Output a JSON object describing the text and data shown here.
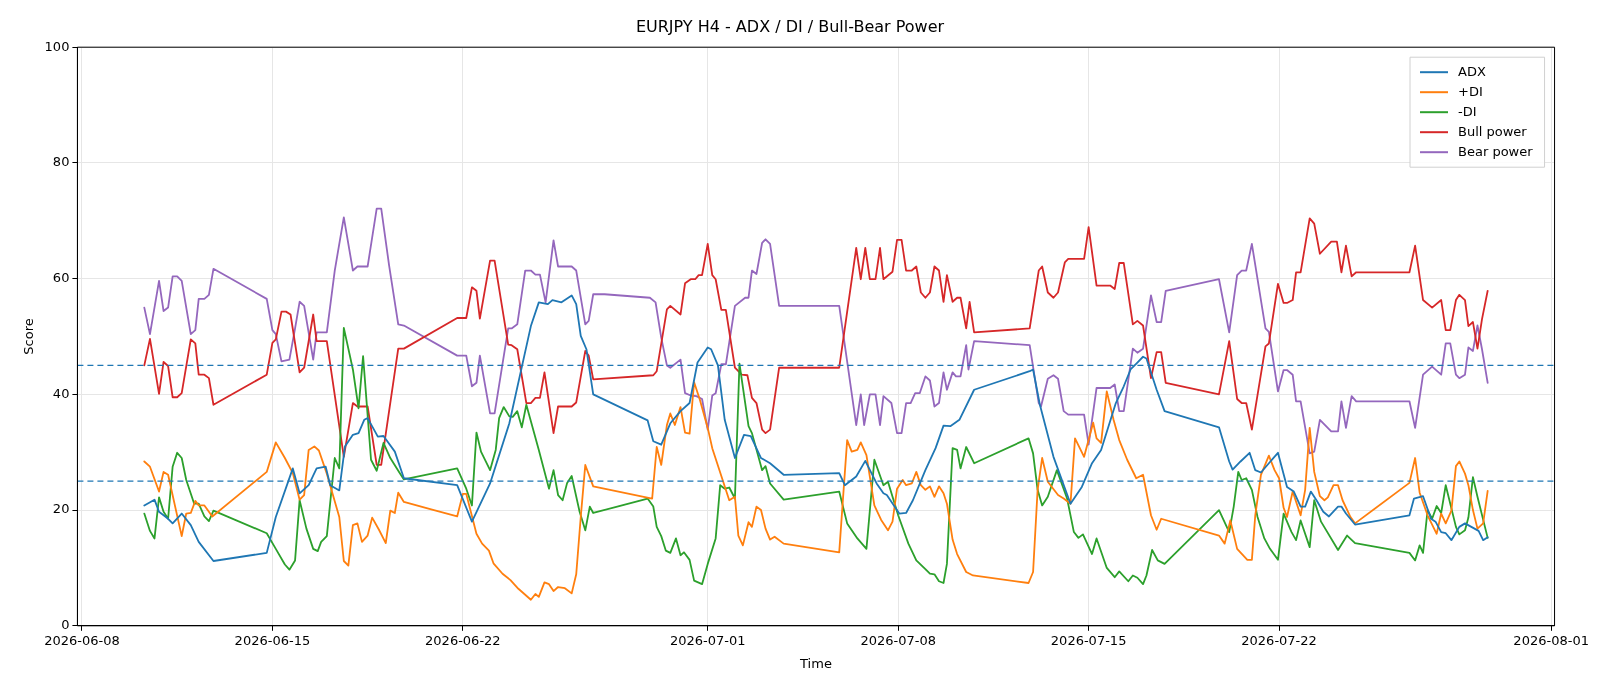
{
  "chart_data": {
    "type": "line",
    "title": "EURJPY H4 - ADX / DI / Bull-Bear Power",
    "xlabel": "Time",
    "ylabel": "Score",
    "xlim": [
      "2026-06-07T20:00",
      "2026-08-01T03:00"
    ],
    "xticks": [
      "2026-06-08",
      "2026-06-15",
      "2026-06-22",
      "2026-07-01",
      "2026-07-08",
      "2026-07-15",
      "2026-07-22",
      "2026-08-01"
    ],
    "ylim": [
      0,
      100
    ],
    "yticks": [
      0,
      20,
      40,
      60,
      80,
      100
    ],
    "grid": true,
    "legend": "top right",
    "marker": "none",
    "line_style": "solid",
    "ref_lines": [
      {
        "axis": "y",
        "value": 45,
        "color": "#1f77b4",
        "line_style": "dashed"
      },
      {
        "axis": "y",
        "value": 25,
        "color": "#1f77b4",
        "line_style": "dashed"
      }
    ],
    "series": [
      {
        "name": "ADX",
        "color": "#1f77b4",
        "x": [
          "2026-06-10T07:00",
          "2026-06-10T16:00",
          "2026-06-10T20:00",
          "2026-06-11T04:00",
          "2026-06-11T08:00",
          "2026-06-11T16:00",
          "2026-06-12T00:00",
          "2026-06-12T07:00",
          "2026-06-12T20:00",
          "2026-06-14T19:00",
          "2026-06-15T03:00",
          "2026-06-15T18:00",
          "2026-06-16T00:00",
          "2026-06-16T08:00",
          "2026-06-16T15:00",
          "2026-06-16T23:00",
          "2026-06-17T03:00",
          "2026-06-17T11:00",
          "2026-06-17T16:00",
          "2026-06-17T23:00",
          "2026-06-18T04:00",
          "2026-06-18T09:00",
          "2026-06-18T12:00",
          "2026-06-18T21:00",
          "2026-06-19T02:00",
          "2026-06-19T12:00",
          "2026-06-19T20:00",
          "2026-06-21T19:00",
          "2026-06-22T08:00",
          "2026-06-23T00:00",
          "2026-06-23T17:00",
          "2026-06-24T12:00",
          "2026-06-24T19:00",
          "2026-06-25T03:00",
          "2026-06-25T07:00",
          "2026-06-25T15:00",
          "2026-06-26T00:00",
          "2026-06-26T04:00",
          "2026-06-26T08:00",
          "2026-06-26T13:00",
          "2026-06-26T19:00",
          "2026-06-28T19:00",
          "2026-06-29T00:00",
          "2026-06-29T07:00",
          "2026-06-29T15:00",
          "2026-06-30T00:00",
          "2026-06-30T08:00",
          "2026-06-30T15:00",
          "2026-07-01T00:00",
          "2026-07-01T03:00",
          "2026-07-01T09:00",
          "2026-07-01T15:00",
          "2026-07-02T00:00",
          "2026-07-02T08:00",
          "2026-07-02T14:00",
          "2026-07-02T23:00",
          "2026-07-03T07:00",
          "2026-07-03T19:00",
          "2026-07-05T20:00",
          "2026-07-06T01:00",
          "2026-07-06T11:00",
          "2026-07-06T19:00",
          "2026-07-07T05:00",
          "2026-07-07T11:00",
          "2026-07-07T14:00",
          "2026-07-08T01:00",
          "2026-07-08T07:00",
          "2026-07-08T13:00",
          "2026-07-09T00:00",
          "2026-07-09T09:00",
          "2026-07-09T16:00",
          "2026-07-09T22:00",
          "2026-07-10T06:00",
          "2026-07-10T19:00",
          "2026-07-12T20:00",
          "2026-07-12T23:00",
          "2026-07-13T05:00",
          "2026-07-13T17:00",
          "2026-07-14T08:00",
          "2026-07-14T18:00",
          "2026-07-15T03:00",
          "2026-07-15T11:00",
          "2026-07-16T00:00",
          "2026-07-16T07:00",
          "2026-07-16T13:00",
          "2026-07-16T19:00",
          "2026-07-17T00:00",
          "2026-07-17T03:00",
          "2026-07-17T12:00",
          "2026-07-17T19:00",
          "2026-07-19T19:00",
          "2026-07-20T04:00",
          "2026-07-20T07:00",
          "2026-07-20T14:00",
          "2026-07-20T22:00",
          "2026-07-21T03:00",
          "2026-07-21T08:00",
          "2026-07-21T15:00",
          "2026-07-21T23:00",
          "2026-07-22T07:00",
          "2026-07-22T13:00",
          "2026-07-22T19:00",
          "2026-07-22T23:00",
          "2026-07-23T04:00",
          "2026-07-23T09:00",
          "2026-07-23T15:00",
          "2026-07-23T20:00",
          "2026-07-24T04:00",
          "2026-07-24T07:00",
          "2026-07-24T11:00",
          "2026-07-24T19:00",
          "2026-07-26T19:00",
          "2026-07-26T23:00",
          "2026-07-27T07:00",
          "2026-07-27T14:00",
          "2026-07-27T18:00",
          "2026-07-27T23:00",
          "2026-07-28T03:00",
          "2026-07-28T08:00",
          "2026-07-28T15:00",
          "2026-07-28T20:00",
          "2026-07-29T08:00",
          "2026-07-29T12:00",
          "2026-07-29T16:00"
        ],
        "values": [
          20.8,
          21.8,
          19.7,
          18.5,
          17.7,
          19.4,
          17.4,
          14.5,
          11.2,
          12.6,
          18.8,
          27.2,
          22.9,
          24.3,
          27.2,
          27.5,
          24.3,
          23.4,
          31.0,
          33.0,
          33.3,
          35.6,
          35.9,
          32.7,
          32.8,
          30.1,
          25.5,
          24.3,
          18.0,
          24.6,
          35.0,
          51.8,
          55.9,
          55.6,
          56.3,
          55.9,
          57.1,
          55.6,
          50.1,
          47.8,
          40.0,
          35.5,
          31.9,
          31.3,
          35.0,
          37.1,
          38.5,
          45.5,
          48.1,
          47.8,
          45.0,
          35.6,
          29.0,
          33.0,
          32.8,
          29.0,
          28.1,
          26.1,
          26.4,
          24.3,
          25.8,
          28.5,
          24.6,
          22.9,
          22.6,
          19.4,
          19.5,
          21.7,
          26.9,
          30.7,
          34.6,
          34.5,
          35.6,
          40.8,
          44.0,
          44.3,
          38.2,
          29.2,
          21.1,
          24.0,
          28.1,
          30.4,
          38.5,
          41.4,
          44.3,
          45.5,
          46.5,
          46.2,
          40.8,
          37.1,
          34.3,
          28.4,
          27.0,
          28.4,
          29.9,
          26.9,
          26.5,
          28.1,
          29.9,
          24.0,
          23.2,
          20.6,
          20.6,
          23.2,
          21.7,
          19.7,
          18.9,
          20.6,
          20.6,
          19.4,
          17.5,
          19.1,
          22.0,
          22.4,
          18.5,
          18.0,
          16.2,
          16.0,
          14.8,
          17.1,
          17.7,
          16.4,
          14.8,
          15.3
        ]
      },
      {
        "name": "+DI",
        "color": "#ff7f0e",
        "x": [
          "2026-06-10T07:00",
          "2026-06-10T12:00",
          "2026-06-10T20:00",
          "2026-06-11T00:00",
          "2026-06-11T04:00",
          "2026-06-11T16:00",
          "2026-06-11T20:00",
          "2026-06-12T00:00",
          "2026-06-12T04:00",
          "2026-06-12T07:00",
          "2026-06-12T12:00",
          "2026-06-12T19:00",
          "2026-06-14T19:00",
          "2026-06-15T03:00",
          "2026-06-15T11:00",
          "2026-06-15T18:00",
          "2026-06-16T00:00",
          "2026-06-16T04:00",
          "2026-06-16T08:00",
          "2026-06-16T13:00",
          "2026-06-16T17:00",
          "2026-06-17T00:00",
          "2026-06-17T11:00",
          "2026-06-17T15:00",
          "2026-06-17T19:00",
          "2026-06-17T23:00",
          "2026-06-18T03:00",
          "2026-06-18T07:00",
          "2026-06-18T12:00",
          "2026-06-18T16:00",
          "2026-06-18T22:00",
          "2026-06-19T04:00",
          "2026-06-19T08:00",
          "2026-06-19T12:00",
          "2026-06-19T15:00",
          "2026-06-19T20:00",
          "2026-06-21T19:00",
          "2026-06-22T00:00",
          "2026-06-22T03:00",
          "2026-06-22T12:00",
          "2026-06-22T17:00",
          "2026-06-22T23:00",
          "2026-06-23T03:00",
          "2026-06-23T11:00",
          "2026-06-23T18:00",
          "2026-06-24T01:00",
          "2026-06-24T12:00",
          "2026-06-24T16:00",
          "2026-06-24T19:00",
          "2026-06-25T00:00",
          "2026-06-25T04:00",
          "2026-06-25T08:00",
          "2026-06-25T12:00",
          "2026-06-25T18:00",
          "2026-06-26T00:00",
          "2026-06-26T04:00",
          "2026-06-26T08:00",
          "2026-06-26T12:00",
          "2026-06-26T19:00",
          "2026-06-28T23:00",
          "2026-06-29T03:00",
          "2026-06-29T07:00",
          "2026-06-29T12:00",
          "2026-06-29T15:00",
          "2026-06-29T19:00",
          "2026-06-30T00:00",
          "2026-06-30T04:00",
          "2026-06-30T08:00",
          "2026-06-30T12:00",
          "2026-06-30T17:00",
          "2026-07-01T00:00",
          "2026-07-01T04:00",
          "2026-07-01T19:00",
          "2026-07-02T00:00",
          "2026-07-02T03:00",
          "2026-07-02T07:00",
          "2026-07-02T12:00",
          "2026-07-02T15:00",
          "2026-07-02T19:00",
          "2026-07-02T23:00",
          "2026-07-03T03:00",
          "2026-07-03T07:00",
          "2026-07-03T11:00",
          "2026-07-03T19:00",
          "2026-07-05T20:00",
          "2026-07-05T23:00",
          "2026-07-06T03:00",
          "2026-07-06T07:00",
          "2026-07-06T12:00",
          "2026-07-06T15:00",
          "2026-07-06T20:00",
          "2026-07-07T03:00",
          "2026-07-07T09:00",
          "2026-07-07T15:00",
          "2026-07-07T19:00",
          "2026-07-07T23:00",
          "2026-07-08T04:00",
          "2026-07-08T07:00",
          "2026-07-08T12:00",
          "2026-07-08T16:00",
          "2026-07-08T20:00",
          "2026-07-09T00:00",
          "2026-07-09T04:00",
          "2026-07-09T08:00",
          "2026-07-09T12:00",
          "2026-07-09T16:00",
          "2026-07-09T19:00",
          "2026-07-10T00:00",
          "2026-07-10T04:00",
          "2026-07-10T12:00",
          "2026-07-10T18:00",
          "2026-07-12T19:00",
          "2026-07-12T23:00",
          "2026-07-13T03:00",
          "2026-07-13T07:00",
          "2026-07-13T12:00",
          "2026-07-13T21:00",
          "2026-07-14T02:00",
          "2026-07-14T08:00",
          "2026-07-14T12:00",
          "2026-07-14T20:00",
          "2026-07-15T04:00",
          "2026-07-15T07:00",
          "2026-07-15T11:00",
          "2026-07-15T16:00",
          "2026-07-15T22:00",
          "2026-07-16T03:00",
          "2026-07-16T10:00",
          "2026-07-16T18:00",
          "2026-07-17T00:00",
          "2026-07-17T07:00",
          "2026-07-17T12:00",
          "2026-07-17T16:00",
          "2026-07-19T19:00",
          "2026-07-20T00:00",
          "2026-07-20T05:00",
          "2026-07-20T11:00",
          "2026-07-20T20:00",
          "2026-07-21T00:00",
          "2026-07-21T03:00",
          "2026-07-21T08:00",
          "2026-07-21T15:00",
          "2026-07-21T20:00",
          "2026-07-22T00:00",
          "2026-07-22T04:00",
          "2026-07-22T07:00",
          "2026-07-22T12:00",
          "2026-07-22T19:00",
          "2026-07-22T23:00",
          "2026-07-23T03:00",
          "2026-07-23T07:00",
          "2026-07-23T12:00",
          "2026-07-23T16:00",
          "2026-07-23T19:00",
          "2026-07-24T00:00",
          "2026-07-24T04:00",
          "2026-07-24T08:00",
          "2026-07-24T15:00",
          "2026-07-24T19:00",
          "2026-07-26T19:00",
          "2026-07-27T00:00",
          "2026-07-27T04:00",
          "2026-07-27T11:00",
          "2026-07-27T19:00",
          "2026-07-27T23:00",
          "2026-07-28T03:00",
          "2026-07-28T08:00",
          "2026-07-28T12:00",
          "2026-07-28T15:00",
          "2026-07-28T20:00",
          "2026-07-28T23:00",
          "2026-07-29T03:00",
          "2026-07-29T07:00",
          "2026-07-29T12:00",
          "2026-07-29T16:00"
        ],
        "values": [
          28.4,
          27.5,
          23.2,
          26.6,
          26.1,
          15.5,
          19.4,
          19.5,
          21.6,
          20.8,
          20.8,
          18.9,
          26.6,
          31.7,
          29.0,
          26.4,
          21.8,
          22.6,
          30.4,
          31.0,
          30.3,
          26.3,
          18.8,
          11.2,
          10.4,
          17.4,
          17.7,
          14.5,
          15.6,
          18.7,
          16.6,
          14.3,
          19.9,
          19.5,
          23.0,
          21.4,
          18.9,
          22.8,
          22.8,
          15.9,
          14.2,
          13.0,
          10.8,
          9.0,
          7.9,
          6.4,
          4.5,
          5.5,
          5.0,
          7.5,
          7.2,
          6.0,
          6.7,
          6.5,
          5.6,
          8.9,
          18.8,
          27.8,
          24.1,
          22.0,
          30.9,
          27.8,
          34.7,
          36.7,
          34.7,
          37.8,
          33.4,
          33.2,
          42.1,
          39.1,
          34.2,
          30.7,
          21.7,
          22.3,
          15.6,
          13.9,
          17.9,
          17.1,
          20.6,
          20.0,
          16.8,
          14.9,
          15.4,
          14.2,
          12.7,
          21.1,
          32.1,
          30.1,
          30.4,
          31.7,
          29.5,
          20.8,
          18.3,
          16.5,
          18.0,
          23.7,
          25.2,
          24.3,
          24.6,
          26.6,
          24.3,
          23.5,
          24.1,
          22.3,
          24.1,
          22.9,
          21.1,
          14.9,
          12.4,
          9.3,
          8.7,
          7.4,
          9.3,
          23.5,
          29.0,
          24.9,
          22.6,
          22.0,
          21.1,
          32.4,
          29.2,
          35.1,
          32.4,
          31.6,
          40.5,
          35.6,
          32.1,
          28.7,
          25.5,
          26.1,
          19.1,
          16.6,
          18.5,
          15.6,
          14.2,
          18.2,
          13.3,
          11.4,
          11.4,
          19.1,
          26.1,
          29.4,
          26.9,
          25.5,
          20.4,
          18.8,
          23.2,
          19.1,
          23.5,
          34.2,
          26.6,
          22.4,
          21.7,
          22.2,
          24.3,
          24.3,
          21.7,
          18.8,
          17.7,
          24.7,
          29.0,
          23.0,
          19.1,
          15.9,
          19.4,
          17.7,
          19.9,
          27.6,
          28.4,
          26.3,
          24.3,
          20.0,
          16.8,
          17.7,
          23.3
        ]
      },
      {
        "name": "-DI",
        "color": "#2ca02c",
        "x": [
          "2026-06-10T07:00",
          "2026-06-10T12:00",
          "2026-06-10T16:00",
          "2026-06-10T20:00",
          "2026-06-11T00:00",
          "2026-06-11T04:00",
          "2026-06-11T08:00",
          "2026-06-11T12:00",
          "2026-06-11T16:00",
          "2026-06-11T20:00",
          "2026-06-12T03:00",
          "2026-06-12T07:00",
          "2026-06-12T12:00",
          "2026-06-12T16:00",
          "2026-06-12T20:00",
          "2026-06-14T19:00",
          "2026-06-15T03:00",
          "2026-06-15T11:00",
          "2026-06-15T15:00",
          "2026-06-15T20:00",
          "2026-06-16T00:00",
          "2026-06-16T06:00",
          "2026-06-16T12:00",
          "2026-06-16T16:00",
          "2026-06-16T19:00",
          "2026-06-17T00:00",
          "2026-06-17T07:00",
          "2026-06-17T11:00",
          "2026-06-17T15:00",
          "2026-06-17T23:00",
          "2026-06-18T04:00",
          "2026-06-18T08:00",
          "2026-06-18T15:00",
          "2026-06-18T20:00",
          "2026-06-19T02:00",
          "2026-06-19T08:00",
          "2026-06-19T16:00",
          "2026-06-19T20:00",
          "2026-06-21T19:00",
          "2026-06-22T03:00",
          "2026-06-22T08:00",
          "2026-06-22T12:00",
          "2026-06-22T16:00",
          "2026-06-23T00:00",
          "2026-06-23T05:00",
          "2026-06-23T08:00",
          "2026-06-23T12:00",
          "2026-06-23T17:00",
          "2026-06-23T20:00",
          "2026-06-24T00:00",
          "2026-06-24T04:00",
          "2026-06-24T08:00",
          "2026-06-24T19:00",
          "2026-06-25T04:00",
          "2026-06-25T08:00",
          "2026-06-25T12:00",
          "2026-06-25T16:00",
          "2026-06-25T20:00",
          "2026-06-26T00:00",
          "2026-06-26T07:00",
          "2026-06-26T12:00",
          "2026-06-26T16:00",
          "2026-06-26T19:00",
          "2026-06-28T19:00",
          "2026-06-29T00:00",
          "2026-06-29T03:00",
          "2026-06-29T07:00",
          "2026-06-29T11:00",
          "2026-06-29T15:00",
          "2026-06-29T20:00",
          "2026-06-30T00:00",
          "2026-06-30T03:00",
          "2026-06-30T08:00",
          "2026-06-30T12:00",
          "2026-06-30T19:00",
          "2026-07-01T00:00",
          "2026-07-01T07:00",
          "2026-07-01T11:00",
          "2026-07-01T15:00",
          "2026-07-01T19:00",
          "2026-07-02T00:00",
          "2026-07-02T04:00",
          "2026-07-02T12:00",
          "2026-07-02T15:00",
          "2026-07-03T00:00",
          "2026-07-03T03:00",
          "2026-07-03T07:00",
          "2026-07-03T19:00",
          "2026-07-05T20:00",
          "2026-07-06T03:00",
          "2026-07-06T12:00",
          "2026-07-06T20:00",
          "2026-07-07T03:00",
          "2026-07-07T11:00",
          "2026-07-07T15:00",
          "2026-07-08T00:00",
          "2026-07-08T09:00",
          "2026-07-08T16:00",
          "2026-07-09T00:00",
          "2026-07-09T04:00",
          "2026-07-09T08:00",
          "2026-07-09T12:00",
          "2026-07-09T16:00",
          "2026-07-09T19:00",
          "2026-07-10T00:00",
          "2026-07-10T04:00",
          "2026-07-10T07:00",
          "2026-07-10T12:00",
          "2026-07-10T19:00",
          "2026-07-12T19:00",
          "2026-07-12T23:00",
          "2026-07-13T03:00",
          "2026-07-13T07:00",
          "2026-07-13T12:00",
          "2026-07-13T20:00",
          "2026-07-14T05:00",
          "2026-07-14T11:00",
          "2026-07-14T15:00",
          "2026-07-14T19:00",
          "2026-07-15T03:00",
          "2026-07-15T07:00",
          "2026-07-15T16:00",
          "2026-07-15T23:00",
          "2026-07-16T03:00",
          "2026-07-16T11:00",
          "2026-07-16T15:00",
          "2026-07-16T19:00",
          "2026-07-17T00:00",
          "2026-07-17T03:00",
          "2026-07-17T08:00",
          "2026-07-17T13:00",
          "2026-07-17T19:00",
          "2026-07-19T19:00",
          "2026-07-20T04:00",
          "2026-07-20T08:00",
          "2026-07-20T12:00",
          "2026-07-20T15:00",
          "2026-07-20T19:00",
          "2026-07-21T00:00",
          "2026-07-21T05:00",
          "2026-07-21T11:00",
          "2026-07-21T16:00",
          "2026-07-21T23:00",
          "2026-07-22T04:00",
          "2026-07-22T11:00",
          "2026-07-22T15:00",
          "2026-07-22T19:00",
          "2026-07-23T03:00",
          "2026-07-23T07:00",
          "2026-07-23T13:00",
          "2026-07-24T04:00",
          "2026-07-24T12:00",
          "2026-07-24T19:00",
          "2026-07-26T19:00",
          "2026-07-27T00:00",
          "2026-07-27T04:00",
          "2026-07-27T07:00",
          "2026-07-27T11:00",
          "2026-07-27T15:00",
          "2026-07-27T19:00",
          "2026-07-27T23:00",
          "2026-07-28T03:00",
          "2026-07-28T12:00",
          "2026-07-28T15:00",
          "2026-07-28T20:00",
          "2026-07-28T23:00",
          "2026-07-29T03:00",
          "2026-07-29T07:00",
          "2026-07-29T16:00"
        ],
        "values": [
          19.4,
          16.4,
          15.1,
          22.2,
          19.7,
          18.5,
          27.5,
          29.9,
          29.0,
          25.2,
          21.1,
          21.1,
          18.9,
          18.1,
          19.9,
          16.0,
          13.3,
          10.6,
          9.7,
          11.3,
          21.7,
          16.8,
          13.3,
          12.9,
          14.5,
          15.5,
          29.0,
          27.2,
          51.5,
          44.3,
          37.6,
          46.6,
          28.7,
          26.8,
          31.6,
          29.0,
          26.5,
          25.3,
          27.2,
          23.7,
          20.8,
          33.4,
          30.1,
          26.9,
          30.4,
          35.9,
          37.8,
          36.2,
          36.1,
          37.1,
          34.3,
          38.2,
          30.4,
          23.7,
          26.9,
          22.6,
          21.7,
          24.7,
          25.9,
          19.7,
          16.5,
          20.6,
          19.5,
          22.0,
          20.6,
          17.1,
          15.5,
          13.0,
          12.6,
          15.1,
          12.2,
          12.7,
          11.4,
          7.8,
          7.2,
          10.7,
          15.1,
          24.3,
          23.7,
          23.9,
          22.0,
          45.3,
          34.5,
          33.3,
          26.9,
          27.6,
          24.6,
          21.8,
          23.2,
          17.7,
          15.1,
          13.3,
          28.7,
          24.3,
          24.9,
          19.1,
          14.2,
          11.3,
          9.8,
          9.0,
          8.9,
          7.7,
          7.4,
          10.7,
          30.7,
          30.4,
          27.2,
          30.9,
          28.1,
          32.4,
          29.8,
          23.5,
          20.8,
          22.3,
          26.9,
          22.0,
          16.2,
          15.2,
          15.8,
          12.4,
          15.1,
          10.0,
          8.4,
          9.4,
          7.7,
          8.7,
          8.3,
          7.2,
          8.7,
          13.1,
          11.3,
          10.7,
          20.0,
          16.2,
          20.6,
          26.6,
          25.2,
          25.5,
          23.5,
          18.8,
          15.1,
          13.3,
          11.4,
          19.4,
          16.2,
          14.8,
          18.2,
          13.6,
          21.7,
          18.0,
          13.1,
          15.6,
          14.3,
          12.6,
          11.3,
          13.9,
          12.6,
          20.0,
          18.5,
          20.7,
          19.5,
          24.3,
          17.1,
          15.8,
          16.5,
          18.7,
          25.7,
          22.3,
          15.2
        ]
      },
      {
        "name": "Bull power",
        "color": "#d62728",
        "x": [
          "2026-06-10T07:00",
          "2026-06-10T12:00",
          "2026-06-10T20:00",
          "2026-06-11T00:00",
          "2026-06-11T04:00",
          "2026-06-11T08:00",
          "2026-06-11T12:00",
          "2026-06-11T16:00",
          "2026-06-12T00:00",
          "2026-06-12T04:00",
          "2026-06-12T07:00",
          "2026-06-12T12:00",
          "2026-06-12T16:00",
          "2026-06-12T20:00",
          "2026-06-14T19:00",
          "2026-06-15T00:00",
          "2026-06-15T03:00",
          "2026-06-15T08:00",
          "2026-06-15T12:00",
          "2026-06-15T16:00",
          "2026-06-16T00:00",
          "2026-06-16T04:00",
          "2026-06-16T12:00",
          "2026-06-16T15:00",
          "2026-06-17T00:00",
          "2026-06-17T15:00",
          "2026-06-17T23:00",
          "2026-06-18T03:00",
          "2026-06-18T12:00",
          "2026-06-18T20:00",
          "2026-06-19T00:00",
          "2026-06-19T15:00",
          "2026-06-19T20:00",
          "2026-06-21T19:00",
          "2026-06-22T03:00",
          "2026-06-22T08:00",
          "2026-06-22T12:00",
          "2026-06-22T15:00",
          "2026-06-23T00:00",
          "2026-06-23T04:00",
          "2026-06-23T16:00",
          "2026-06-23T19:00",
          "2026-06-24T00:00",
          "2026-06-24T08:00",
          "2026-06-24T12:00",
          "2026-06-24T16:00",
          "2026-06-24T20:00",
          "2026-06-25T00:00",
          "2026-06-25T08:00",
          "2026-06-25T12:00",
          "2026-06-26T00:00",
          "2026-06-26T04:00",
          "2026-06-26T12:00",
          "2026-06-26T15:00",
          "2026-06-26T19:00",
          "2026-06-29T00:00",
          "2026-06-29T03:00",
          "2026-06-29T12:00",
          "2026-06-29T15:00",
          "2026-06-30T00:00",
          "2026-06-30T04:00",
          "2026-06-30T09:00",
          "2026-06-30T13:00",
          "2026-06-30T16:00",
          "2026-06-30T19:00",
          "2026-07-01T00:00",
          "2026-07-01T04:00",
          "2026-07-01T07:00",
          "2026-07-01T12:00",
          "2026-07-01T16:00",
          "2026-07-02T00:00",
          "2026-07-02T06:00",
          "2026-07-02T11:00",
          "2026-07-02T15:00",
          "2026-07-02T19:00",
          "2026-07-03T00:00",
          "2026-07-03T03:00",
          "2026-07-03T07:00",
          "2026-07-03T15:00",
          "2026-07-05T20:00",
          "2026-07-06T11:00",
          "2026-07-06T15:00",
          "2026-07-06T19:00",
          "2026-07-06T23:00",
          "2026-07-07T04:00",
          "2026-07-07T08:00",
          "2026-07-07T11:00",
          "2026-07-07T19:00",
          "2026-07-07T23:00",
          "2026-07-08T03:00",
          "2026-07-08T07:00",
          "2026-07-08T12:00",
          "2026-07-08T16:00",
          "2026-07-08T20:00",
          "2026-07-09T00:00",
          "2026-07-09T04:00",
          "2026-07-09T08:00",
          "2026-07-09T12:00",
          "2026-07-09T16:00",
          "2026-07-09T19:00",
          "2026-07-10T00:00",
          "2026-07-10T04:00",
          "2026-07-10T07:00",
          "2026-07-10T12:00",
          "2026-07-10T15:00",
          "2026-07-10T19:00",
          "2026-07-12T20:00",
          "2026-07-13T04:00",
          "2026-07-13T07:00",
          "2026-07-13T12:00",
          "2026-07-13T17:00",
          "2026-07-13T21:00",
          "2026-07-14T03:00",
          "2026-07-14T06:00",
          "2026-07-14T20:00",
          "2026-07-15T00:00",
          "2026-07-15T07:00",
          "2026-07-15T19:00",
          "2026-07-15T23:00",
          "2026-07-16T03:00",
          "2026-07-16T07:00",
          "2026-07-16T15:00",
          "2026-07-16T19:00",
          "2026-07-17T00:00",
          "2026-07-17T07:00",
          "2026-07-17T12:00",
          "2026-07-17T16:00",
          "2026-07-17T20:00",
          "2026-07-19T19:00",
          "2026-07-20T04:00",
          "2026-07-20T11:00",
          "2026-07-20T15:00",
          "2026-07-20T19:00",
          "2026-07-21T00:00",
          "2026-07-21T12:00",
          "2026-07-21T15:00",
          "2026-07-21T23:00",
          "2026-07-22T04:00",
          "2026-07-22T07:00",
          "2026-07-22T12:00",
          "2026-07-22T15:00",
          "2026-07-22T19:00",
          "2026-07-23T03:00",
          "2026-07-23T07:00",
          "2026-07-23T12:00",
          "2026-07-23T22:00",
          "2026-07-24T03:00",
          "2026-07-24T07:00",
          "2026-07-24T11:00",
          "2026-07-24T16:00",
          "2026-07-24T20:00",
          "2026-07-26T19:00",
          "2026-07-27T00:00",
          "2026-07-27T07:00",
          "2026-07-27T15:00",
          "2026-07-27T23:00",
          "2026-07-28T03:00",
          "2026-07-28T07:00",
          "2026-07-28T12:00",
          "2026-07-28T15:00",
          "2026-07-28T20:00",
          "2026-07-28T23:00",
          "2026-07-29T03:00",
          "2026-07-29T07:00",
          "2026-07-29T11:00",
          "2026-07-29T16:00"
        ],
        "values": [
          45.0,
          49.6,
          40.1,
          45.6,
          44.9,
          39.5,
          39.5,
          40.2,
          49.5,
          48.8,
          43.4,
          43.4,
          42.8,
          38.2,
          43.4,
          48.9,
          49.5,
          54.3,
          54.3,
          53.8,
          43.8,
          44.6,
          53.8,
          49.2,
          49.2,
          29.2,
          38.5,
          37.9,
          37.9,
          27.8,
          27.8,
          47.9,
          47.9,
          53.2,
          53.2,
          58.5,
          57.9,
          53.1,
          63.1,
          63.1,
          48.6,
          48.5,
          47.8,
          38.5,
          38.5,
          39.4,
          39.4,
          43.8,
          33.3,
          37.9,
          37.9,
          38.6,
          47.5,
          46.7,
          42.6,
          43.3,
          44.0,
          54.7,
          55.3,
          53.8,
          59.2,
          59.9,
          59.9,
          60.6,
          60.6,
          66.0,
          60.6,
          59.9,
          54.6,
          54.6,
          44.6,
          43.4,
          43.3,
          39.4,
          38.5,
          33.9,
          33.3,
          33.9,
          44.6,
          44.6,
          65.3,
          59.9,
          65.3,
          59.9,
          59.9,
          65.3,
          59.9,
          61.2,
          66.7,
          66.7,
          61.4,
          61.4,
          62.1,
          57.6,
          56.7,
          57.6,
          62.1,
          61.4,
          56.0,
          60.6,
          56.0,
          56.7,
          56.7,
          51.4,
          56.0,
          50.7,
          51.4,
          61.4,
          62.1,
          57.6,
          56.7,
          57.6,
          62.8,
          63.4,
          63.4,
          68.9,
          58.8,
          58.8,
          58.2,
          62.7,
          62.7,
          52.1,
          52.7,
          51.9,
          42.8,
          47.3,
          47.3,
          42.0,
          40.0,
          49.2,
          39.2,
          38.5,
          38.5,
          33.9,
          48.3,
          48.8,
          59.1,
          55.8,
          55.8,
          56.3,
          61.1,
          61.1,
          70.4,
          69.5,
          64.3,
          66.4,
          66.4,
          61.1,
          65.7,
          60.4,
          61.1,
          61.1,
          65.7,
          56.3,
          55.0,
          56.3,
          51.1,
          51.1,
          56.3,
          57.2,
          56.3,
          51.8,
          52.5,
          47.9,
          53.0,
          57.9
        ]
      },
      {
        "name": "Bear power",
        "color": "#9467bd",
        "x": [
          "2026-06-10T07:00",
          "2026-06-10T12:00",
          "2026-06-10T20:00",
          "2026-06-11T00:00",
          "2026-06-11T04:00",
          "2026-06-11T08:00",
          "2026-06-11T12:00",
          "2026-06-11T16:00",
          "2026-06-12T00:00",
          "2026-06-12T04:00",
          "2026-06-12T07:00",
          "2026-06-12T12:00",
          "2026-06-12T16:00",
          "2026-06-12T20:00",
          "2026-06-14T19:00",
          "2026-06-15T00:00",
          "2026-06-15T03:00",
          "2026-06-15T08:00",
          "2026-06-15T15:00",
          "2026-06-15T20:00",
          "2026-06-16T00:00",
          "2026-06-16T04:00",
          "2026-06-16T12:00",
          "2026-06-16T15:00",
          "2026-06-17T00:00",
          "2026-06-17T07:00",
          "2026-06-17T15:00",
          "2026-06-17T23:00",
          "2026-06-18T03:00",
          "2026-06-18T12:00",
          "2026-06-18T20:00",
          "2026-06-19T00:00",
          "2026-06-19T07:00",
          "2026-06-19T15:00",
          "2026-06-19T20:00",
          "2026-06-21T19:00",
          "2026-06-22T03:00",
          "2026-06-22T08:00",
          "2026-06-22T12:00",
          "2026-06-22T15:00",
          "2026-06-23T00:00",
          "2026-06-23T04:00",
          "2026-06-23T16:00",
          "2026-06-23T19:00",
          "2026-06-24T00:00",
          "2026-06-24T07:00",
          "2026-06-24T12:00",
          "2026-06-24T16:00",
          "2026-06-24T20:00",
          "2026-06-25T01:00",
          "2026-06-25T08:00",
          "2026-06-25T12:00",
          "2026-06-26T00:00",
          "2026-06-26T04:00",
          "2026-06-26T12:00",
          "2026-06-26T15:00",
          "2026-06-26T19:00",
          "2026-06-27T05:00",
          "2026-06-28T21:00",
          "2026-06-29T02:00",
          "2026-06-29T07:00",
          "2026-06-29T12:00",
          "2026-06-29T15:00",
          "2026-06-30T00:00",
          "2026-06-30T04:00",
          "2026-06-30T09:00",
          "2026-06-30T14:00",
          "2026-06-30T19:00",
          "2026-07-01T00:00",
          "2026-07-01T04:00",
          "2026-07-01T07:00",
          "2026-07-01T12:00",
          "2026-07-01T16:00",
          "2026-07-02T00:00",
          "2026-07-02T09:00",
          "2026-07-02T12:00",
          "2026-07-02T15:00",
          "2026-07-02T19:00",
          "2026-07-03T00:00",
          "2026-07-03T03:00",
          "2026-07-03T07:00",
          "2026-07-03T15:00",
          "2026-07-05T20:00",
          "2026-07-06T11:00",
          "2026-07-06T15:00",
          "2026-07-06T18:00",
          "2026-07-06T23:00",
          "2026-07-07T04:00",
          "2026-07-07T08:00",
          "2026-07-07T11:00",
          "2026-07-07T18:00",
          "2026-07-07T23:00",
          "2026-07-08T03:00",
          "2026-07-08T07:00",
          "2026-07-08T11:00",
          "2026-07-08T15:00",
          "2026-07-08T19:00",
          "2026-07-09T00:00",
          "2026-07-09T04:00",
          "2026-07-09T08:00",
          "2026-07-09T12:00",
          "2026-07-09T16:00",
          "2026-07-09T19:00",
          "2026-07-10T00:00",
          "2026-07-10T03:00",
          "2026-07-10T07:00",
          "2026-07-10T12:00",
          "2026-07-10T14:00",
          "2026-07-10T19:00",
          "2026-07-12T20:00",
          "2026-07-13T04:00",
          "2026-07-13T06:00",
          "2026-07-13T12:00",
          "2026-07-13T17:00",
          "2026-07-13T21:00",
          "2026-07-14T02:00",
          "2026-07-14T06:00",
          "2026-07-14T20:00",
          "2026-07-15T00:00",
          "2026-07-15T07:00",
          "2026-07-15T19:00",
          "2026-07-15T23:00",
          "2026-07-16T03:00",
          "2026-07-16T07:00",
          "2026-07-16T15:00",
          "2026-07-16T19:00",
          "2026-07-17T00:00",
          "2026-07-17T07:00",
          "2026-07-17T12:00",
          "2026-07-17T16:00",
          "2026-07-17T20:00",
          "2026-07-19T19:00",
          "2026-07-20T04:00",
          "2026-07-20T11:00",
          "2026-07-20T15:00",
          "2026-07-20T19:00",
          "2026-07-21T00:00",
          "2026-07-21T12:00",
          "2026-07-21T15:00",
          "2026-07-21T23:00",
          "2026-07-22T04:00",
          "2026-07-22T07:00",
          "2026-07-22T12:00",
          "2026-07-22T15:00",
          "2026-07-22T19:00",
          "2026-07-23T03:00",
          "2026-07-23T07:00",
          "2026-07-23T12:00",
          "2026-07-23T22:00",
          "2026-07-24T04:00",
          "2026-07-24T07:00",
          "2026-07-24T11:00",
          "2026-07-24T16:00",
          "2026-07-24T20:00",
          "2026-07-26T19:00",
          "2026-07-27T00:00",
          "2026-07-27T07:00",
          "2026-07-27T15:00",
          "2026-07-27T23:00",
          "2026-07-28T03:00",
          "2026-07-28T07:00",
          "2026-07-28T12:00",
          "2026-07-28T15:00",
          "2026-07-28T20:00",
          "2026-07-28T23:00",
          "2026-07-29T03:00",
          "2026-07-29T07:00",
          "2026-07-29T11:00",
          "2026-07-29T16:00"
        ],
        "values": [
          55.0,
          50.4,
          59.6,
          54.4,
          55.0,
          60.4,
          60.4,
          59.6,
          50.4,
          51.1,
          56.5,
          56.5,
          57.2,
          61.7,
          56.5,
          51.1,
          50.4,
          45.7,
          46.0,
          51.4,
          56.0,
          55.3,
          46.0,
          50.7,
          50.7,
          61.4,
          70.6,
          61.4,
          62.1,
          62.1,
          72.1,
          72.1,
          62.2,
          52.1,
          51.9,
          46.7,
          46.7,
          41.4,
          42.0,
          46.7,
          36.7,
          36.7,
          51.4,
          51.4,
          52.1,
          61.4,
          61.4,
          60.7,
          60.7,
          55.9,
          66.6,
          62.1,
          62.1,
          61.4,
          52.1,
          52.7,
          57.3,
          57.3,
          56.7,
          55.9,
          49.8,
          45.0,
          44.6,
          46.0,
          40.2,
          39.8,
          39.7,
          39.2,
          33.9,
          39.8,
          40.2,
          45.2,
          45.2,
          55.3,
          56.7,
          56.7,
          61.4,
          60.8,
          66.2,
          66.8,
          66.0,
          55.3,
          55.3,
          34.7,
          40.0,
          34.7,
          40.0,
          40.0,
          34.7,
          39.7,
          38.5,
          33.3,
          33.3,
          38.5,
          38.5,
          40.2,
          40.2,
          43.1,
          42.4,
          37.9,
          38.5,
          43.8,
          40.8,
          43.8,
          43.1,
          43.1,
          48.5,
          44.3,
          49.2,
          48.5,
          38.5,
          37.9,
          42.7,
          43.3,
          42.7,
          37.1,
          36.5,
          36.5,
          31.3,
          41.1,
          41.1,
          41.7,
          37.1,
          37.1,
          47.9,
          47.2,
          47.9,
          57.1,
          52.5,
          52.5,
          57.9,
          59.9,
          50.7,
          60.6,
          61.4,
          61.4,
          66.0,
          51.4,
          50.8,
          40.5,
          44.2,
          44.2,
          43.4,
          38.8,
          38.8,
          29.8,
          30.1,
          35.6,
          33.6,
          33.6,
          38.8,
          34.2,
          39.7,
          38.8,
          38.8,
          34.2,
          43.4,
          44.8,
          43.4,
          48.8,
          48.8,
          43.4,
          42.8,
          43.4,
          48.1,
          47.5,
          51.9,
          47.8,
          42.0
        ]
      }
    ]
  }
}
